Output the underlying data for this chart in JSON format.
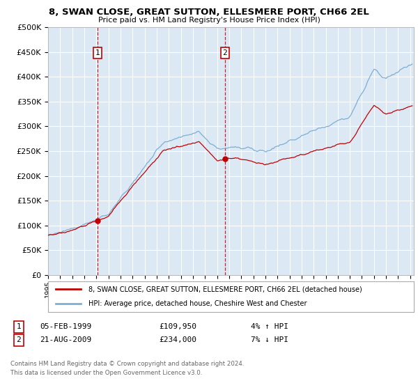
{
  "title1": "8, SWAN CLOSE, GREAT SUTTON, ELLESMERE PORT, CH66 2EL",
  "title2": "Price paid vs. HM Land Registry's House Price Index (HPI)",
  "legend_line1": "8, SWAN CLOSE, GREAT SUTTON, ELLESMERE PORT, CH66 2EL (detached house)",
  "legend_line2": "HPI: Average price, detached house, Cheshire West and Chester",
  "sale1_date": "05-FEB-1999",
  "sale1_price": "£109,950",
  "sale1_hpi": "4% ↑ HPI",
  "sale1_year": 1999.09,
  "sale2_date": "21-AUG-2009",
  "sale2_price": "£234,000",
  "sale2_hpi": "7% ↓ HPI",
  "sale2_year": 2009.64,
  "red_color": "#c00000",
  "blue_color": "#7bafd4",
  "background_color": "#dce9f5",
  "footer": "Contains HM Land Registry data © Crown copyright and database right 2024.\nThis data is licensed under the Open Government Licence v3.0.",
  "ylim": [
    0,
    500000
  ],
  "yticks": [
    0,
    50000,
    100000,
    150000,
    200000,
    250000,
    300000,
    350000,
    400000,
    450000,
    500000
  ],
  "ytick_labels": [
    "£0",
    "£50K",
    "£100K",
    "£150K",
    "£200K",
    "£250K",
    "£300K",
    "£350K",
    "£400K",
    "£450K",
    "£500K"
  ],
  "xmin": 1995.0,
  "xmax": 2025.3
}
